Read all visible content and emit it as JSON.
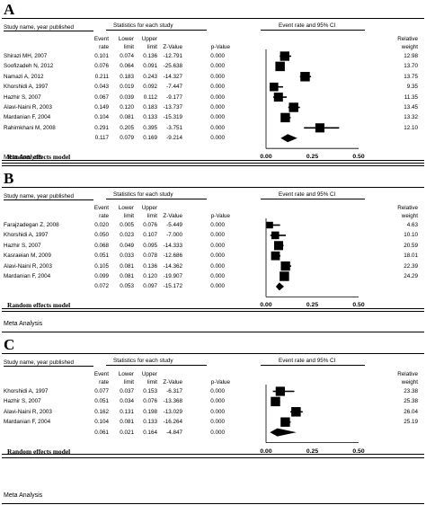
{
  "headers": {
    "study": "Study name, year published",
    "stats_group": "Statistics for each study",
    "plot_group": "Event rate and 95% CI",
    "event1": "Event",
    "event2": "rate",
    "lower1": "Lower",
    "lower2": "limit",
    "upper1": "Upper",
    "upper2": "limit",
    "z": "Z-Value",
    "p": "p-Value",
    "weight1": "Relative",
    "weight2": "weight"
  },
  "footer": {
    "model": "Random effects model",
    "analysis": "Meta Analysis"
  },
  "chart_data": [
    {
      "type": "forest",
      "panel": "A",
      "xlim": [
        0,
        0.5
      ],
      "ticks": [
        "0.00",
        "0.25",
        "0.50"
      ],
      "studies": [
        {
          "name": "Shirazi MH, 2007",
          "rate": "0.101",
          "lower": "0.074",
          "upper": "0.136",
          "z": "-12.791",
          "p": "0.000",
          "weight": "12.98"
        },
        {
          "name": "Soofizadeh N, 2012",
          "rate": "0.076",
          "lower": "0.064",
          "upper": "0.091",
          "z": "-25.638",
          "p": "0.000",
          "weight": "13.70"
        },
        {
          "name": "Namazi A, 2012",
          "rate": "0.211",
          "lower": "0.183",
          "upper": "0.243",
          "z": "-14.327",
          "p": "0.000",
          "weight": "13.75"
        },
        {
          "name": "Khorshidi A, 1997",
          "rate": "0.043",
          "lower": "0.019",
          "upper": "0.092",
          "z": "-7.447",
          "p": "0.000",
          "weight": "9.35"
        },
        {
          "name": "Hazhir S, 2007",
          "rate": "0.067",
          "lower": "0.039",
          "upper": "0.112",
          "z": "-9.177",
          "p": "0.000",
          "weight": "11.35"
        },
        {
          "name": "Alavi-Naini R, 2003",
          "rate": "0.149",
          "lower": "0.120",
          "upper": "0.183",
          "z": "-13.737",
          "p": "0.000",
          "weight": "13.45"
        },
        {
          "name": "Mardanian F, 2004",
          "rate": "0.104",
          "lower": "0.081",
          "upper": "0.133",
          "z": "-15.319",
          "p": "0.000",
          "weight": "13.32"
        },
        {
          "name": "Rahimkhani M, 2008",
          "rate": "0.291",
          "lower": "0.205",
          "upper": "0.395",
          "z": "-3.751",
          "p": "0.000",
          "weight": "12.10"
        }
      ],
      "summary": {
        "rate": "0.117",
        "lower": "0.079",
        "upper": "0.169",
        "z": "-9.214",
        "p": "0.000"
      }
    },
    {
      "type": "forest",
      "panel": "B",
      "xlim": [
        0,
        0.5
      ],
      "ticks": [
        "0.00",
        "0.25",
        "0.50"
      ],
      "studies": [
        {
          "name": "Farajzadegan Z, 2008",
          "rate": "0.020",
          "lower": "0.005",
          "upper": "0.076",
          "z": "-5.449",
          "p": "0.000",
          "weight": "4.63"
        },
        {
          "name": "Khorshidi A, 1997",
          "rate": "0.050",
          "lower": "0.023",
          "upper": "0.107",
          "z": "-7.000",
          "p": "0.000",
          "weight": "10.10"
        },
        {
          "name": "Hazhir S, 2007",
          "rate": "0.068",
          "lower": "0.049",
          "upper": "0.095",
          "z": "-14.333",
          "p": "0.000",
          "weight": "20.59"
        },
        {
          "name": "Kasraeian M, 2009",
          "rate": "0.051",
          "lower": "0.033",
          "upper": "0.078",
          "z": "-12.686",
          "p": "0.000",
          "weight": "18.01"
        },
        {
          "name": "Alavi-Naini R, 2003",
          "rate": "0.105",
          "lower": "0.081",
          "upper": "0.136",
          "z": "-14.362",
          "p": "0.000",
          "weight": "22.39"
        },
        {
          "name": "Mardanian F, 2004",
          "rate": "0.099",
          "lower": "0.081",
          "upper": "0.120",
          "z": "-19.907",
          "p": "0.000",
          "weight": "24.29"
        }
      ],
      "summary": {
        "rate": "0.072",
        "lower": "0.053",
        "upper": "0.097",
        "z": "-15.172",
        "p": "0.000"
      }
    },
    {
      "type": "forest",
      "panel": "C",
      "xlim": [
        0,
        0.5
      ],
      "ticks": [
        "0.00",
        "0.25",
        "0.50"
      ],
      "studies": [
        {
          "name": "Khorshidi A, 1997",
          "rate": "0.077",
          "lower": "0.037",
          "upper": "0.153",
          "z": "-6.317",
          "p": "0.000",
          "weight": "23.38"
        },
        {
          "name": "Hazhir S, 2007",
          "rate": "0.051",
          "lower": "0.034",
          "upper": "0.076",
          "z": "-13.368",
          "p": "0.000",
          "weight": "25.38"
        },
        {
          "name": "Alavi-Naini R, 2003",
          "rate": "0.162",
          "lower": "0.131",
          "upper": "0.198",
          "z": "-13.029",
          "p": "0.000",
          "weight": "26.04"
        },
        {
          "name": "Mardanian F, 2004",
          "rate": "0.104",
          "lower": "0.081",
          "upper": "0.133",
          "z": "-16.264",
          "p": "0.000",
          "weight": "25.19"
        }
      ],
      "summary": {
        "rate": "0.061",
        "lower": "0.021",
        "upper": "0.164",
        "z": "-4.847",
        "p": "0.000"
      }
    }
  ]
}
